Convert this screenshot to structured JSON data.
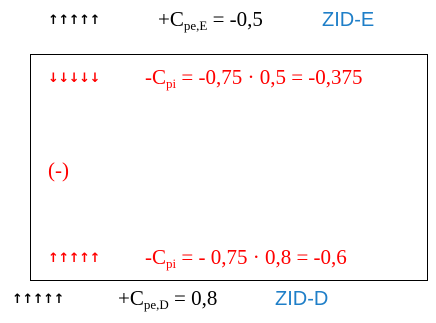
{
  "top": {
    "arrows": "↑↑↑↑↑",
    "prefix": "+C",
    "sub": "pe,E",
    "eq": " = -0,5",
    "zone": "ZID-E"
  },
  "box": {
    "inner_top": {
      "arrows": "↓↓↓↓↓",
      "prefix": "-C",
      "sub": "pi",
      "eq": " = -0,75 · 0,5 = -0,375"
    },
    "sign": "(-)",
    "inner_bottom": {
      "arrows": "↑↑↑↑↑",
      "prefix": "-C",
      "sub": "pi",
      "eq": " = - 0,75 · 0,8 = -0,6"
    }
  },
  "bottom": {
    "arrows": "↑↑↑↑↑",
    "prefix": "+C",
    "sub": "pe,D",
    "eq": " = 0,8",
    "zone": "ZID-D"
  },
  "colors": {
    "text": "#000000",
    "internal": "#ff0000",
    "zone": "#1f7fc8"
  }
}
